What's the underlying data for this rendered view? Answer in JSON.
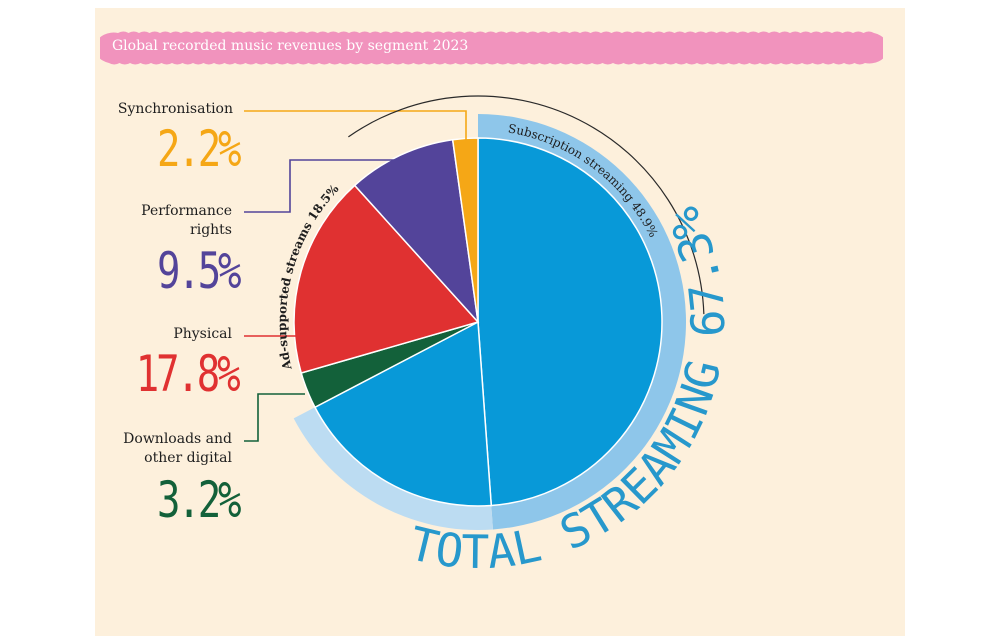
{
  "title": "Global recorded music revenues by segment 2023",
  "colors": {
    "panel": "#fdf0dc",
    "banner": "#f193bd",
    "subscription": "#0899d8",
    "ad_supported": "#bcdcf2",
    "streaming_ring": "#8ec6ea",
    "downloads": "#13613a",
    "physical": "#e03131",
    "performance": "#53449a",
    "synchronisation": "#f5a716",
    "streaming_text": "#2798cc"
  },
  "chart_data": {
    "type": "pie",
    "title": "Global recorded music revenues by segment 2023",
    "unit": "%",
    "slices": [
      {
        "label": "Subscription streaming",
        "value": 48.9,
        "display": "48.9%"
      },
      {
        "label": "Ad-supported streams",
        "value": 18.5,
        "display": "18.5%"
      },
      {
        "label": "Downloads and other digital",
        "value": 3.2,
        "display": "3.2%"
      },
      {
        "label": "Physical",
        "value": 17.8,
        "display": "17.8%"
      },
      {
        "label": "Performance rights",
        "value": 9.5,
        "display": "9.5%"
      },
      {
        "label": "Synchronisation",
        "value": 2.2,
        "display": "2.2%"
      }
    ],
    "group": {
      "label": "TOTAL STREAMING",
      "value": 67.3,
      "display": "67.3%"
    }
  },
  "labels": {
    "synchronisation": {
      "name": "Synchronisation",
      "pct": "2.2%"
    },
    "performance": {
      "name_line1": "Performance",
      "name_line2": "rights",
      "pct": "9.5%"
    },
    "physical": {
      "name": "Physical",
      "pct": "17.8%"
    },
    "downloads": {
      "name_line1": "Downloads and",
      "name_line2": "other digital",
      "pct": "3.2%"
    },
    "ad_supported": "Ad-supported streams 18.5%",
    "subscription": "Subscription streaming 48.9%",
    "total_streaming": "TOTAL STREAMING 67.3%"
  }
}
